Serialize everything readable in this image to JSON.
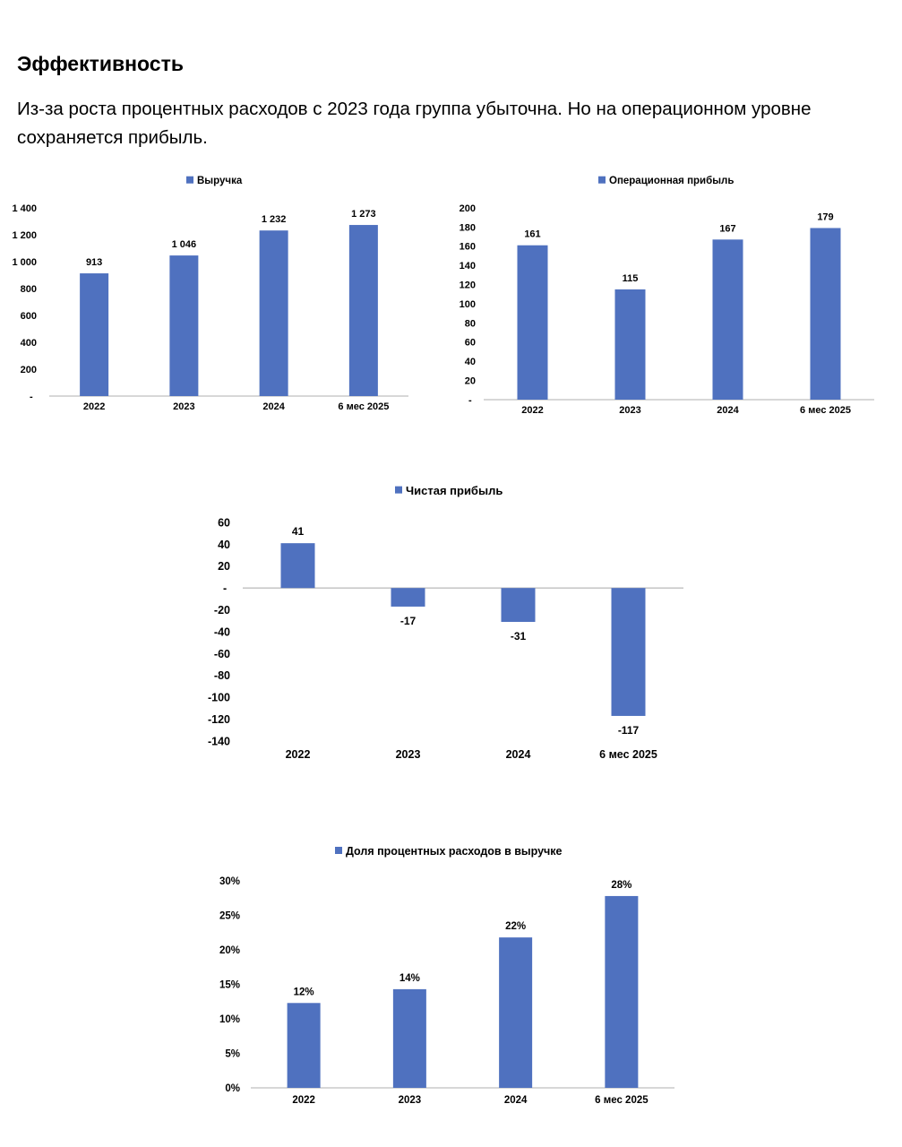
{
  "page": {
    "title": "Эффективность",
    "intro": "Из-за роста процентных расходов с 2023 года группа убыточна. Но на операционном уровне сохраняется прибыль."
  },
  "colors": {
    "bar": "#4F71BF",
    "axis": "#bfbfbf",
    "text": "#000000"
  },
  "chart_data": [
    {
      "id": "revenue",
      "type": "bar",
      "legend": "Выручка",
      "categories": [
        "2022",
        "2023",
        "2024",
        "6 мес 2025"
      ],
      "values": [
        913,
        1046,
        1232,
        1273
      ],
      "value_labels": [
        "913",
        "1 046",
        "1 232",
        "1 273"
      ],
      "ylim": [
        0,
        1400
      ],
      "yticks": [
        0,
        200,
        400,
        600,
        800,
        1000,
        1200,
        1400
      ],
      "ytick_labels": [
        "-",
        "200",
        "400",
        "600",
        "800",
        "1 000",
        "1 200",
        "1 400"
      ]
    },
    {
      "id": "operating-profit",
      "type": "bar",
      "legend": "Операционная прибыль",
      "categories": [
        "2022",
        "2023",
        "2024",
        "6 мес 2025"
      ],
      "values": [
        161,
        115,
        167,
        179
      ],
      "value_labels": [
        "161",
        "115",
        "167",
        "179"
      ],
      "ylim": [
        0,
        200
      ],
      "yticks": [
        0,
        20,
        40,
        60,
        80,
        100,
        120,
        140,
        160,
        180,
        200
      ],
      "ytick_labels": [
        "-",
        "20",
        "40",
        "60",
        "80",
        "100",
        "120",
        "140",
        "160",
        "180",
        "200"
      ]
    },
    {
      "id": "net-profit",
      "type": "bar",
      "legend": "Чистая прибыль",
      "categories": [
        "2022",
        "2023",
        "2024",
        "6 мес 2025"
      ],
      "values": [
        41,
        -17,
        -31,
        -117
      ],
      "value_labels": [
        "41",
        "-17",
        "-31",
        "-117"
      ],
      "ylim": [
        -140,
        60
      ],
      "yticks": [
        60,
        40,
        20,
        0,
        -20,
        -40,
        -60,
        -80,
        -100,
        -120,
        -140
      ],
      "ytick_labels": [
        "60",
        "40",
        "20",
        "-",
        "-20",
        "-40",
        "-60",
        "-80",
        "-100",
        "-120",
        "-140"
      ]
    },
    {
      "id": "interest-share",
      "type": "bar",
      "legend": "Доля процентных расходов в выручке",
      "categories": [
        "2022",
        "2023",
        "2024",
        "6 мес 2025"
      ],
      "values": [
        12.3,
        14.3,
        21.8,
        27.8
      ],
      "value_labels": [
        "12%",
        "14%",
        "22%",
        "28%"
      ],
      "ylim": [
        0,
        30
      ],
      "yticks": [
        0,
        5,
        10,
        15,
        20,
        25,
        30
      ],
      "ytick_labels": [
        "0%",
        "5%",
        "10%",
        "15%",
        "20%",
        "25%",
        "30%"
      ]
    }
  ]
}
